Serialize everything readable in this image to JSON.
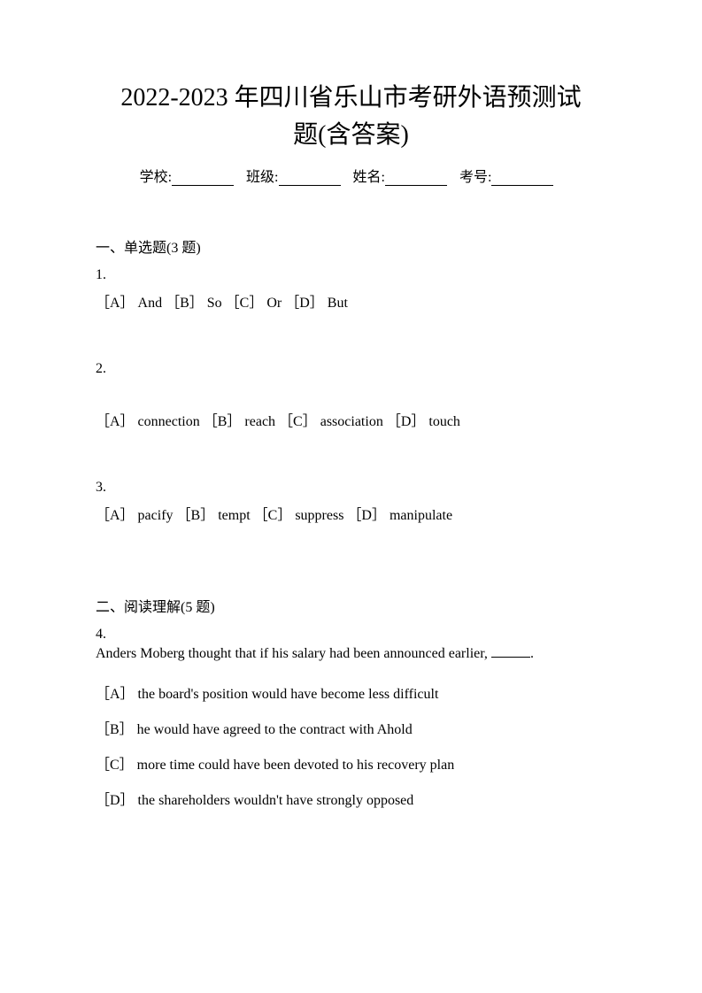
{
  "title_line1": "2022-2023 年四川省乐山市考研外语预测试",
  "title_line2": "题(含答案)",
  "info": {
    "school_label": "学校:",
    "class_label": "班级:",
    "name_label": "姓名:",
    "exam_num_label": "考号:"
  },
  "section1": {
    "heading": "一、单选题(3 题)",
    "q1": {
      "num": "1.",
      "options": "［A］ And ［B］ So ［C］ Or ［D］ But"
    },
    "q2": {
      "num": "2.",
      "options": "［A］ connection ［B］ reach ［C］ association ［D］ touch"
    },
    "q3": {
      "num": "3.",
      "options": "［A］ pacify ［B］ tempt ［C］ suppress ［D］ manipulate"
    }
  },
  "section2": {
    "heading": "二、阅读理解(5 题)",
    "q4": {
      "num": "4.",
      "text_before": "Anders Moberg thought that if his salary had been announced earlier, ",
      "text_after": ".",
      "optA": "［A］ the board's position would have become less difficult",
      "optB": "［B］ he would have agreed to the contract with Ahold",
      "optC": "［C］ more time could have been devoted to his recovery plan",
      "optD": "［D］ the shareholders wouldn't have strongly opposed"
    }
  }
}
